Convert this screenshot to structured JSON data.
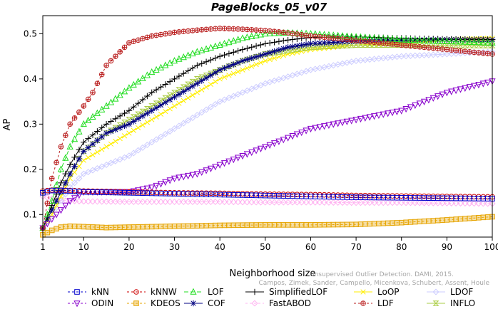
{
  "chart_data": {
    "type": "line",
    "title": "PageBlocks_05_v07",
    "xlabel": "Neighborhood size",
    "ylabel": "AP",
    "xlim": [
      1,
      100
    ],
    "ylim": [
      0.05,
      0.54
    ],
    "xticks": [
      1,
      10,
      20,
      30,
      40,
      50,
      60,
      70,
      80,
      90,
      100
    ],
    "yticks": [
      0.1,
      0.2,
      0.3,
      0.4,
      0.5
    ],
    "grid": false,
    "legend_position": "bottom",
    "watermark": "Campos, Zimek, Sander, Campello, Micenkova, Schubert, Assent, Houle",
    "watermark_partial": "Unsupervised Outlier Detection. DAMI, 2015.",
    "series": [
      {
        "name": "kNN",
        "color": "#0000cc",
        "marker": "square",
        "dash": "3,3",
        "x": [
          1,
          3,
          5,
          10,
          20,
          30,
          40,
          50,
          60,
          70,
          80,
          90,
          100
        ],
        "y": [
          0.148,
          0.153,
          0.153,
          0.15,
          0.148,
          0.146,
          0.144,
          0.142,
          0.14,
          0.138,
          0.137,
          0.136,
          0.135
        ]
      },
      {
        "name": "kNNW",
        "color": "#cc0000",
        "marker": "circle",
        "dash": "3,3",
        "x": [
          1,
          3,
          5,
          10,
          20,
          30,
          40,
          50,
          60,
          70,
          80,
          90,
          100
        ],
        "y": [
          0.152,
          0.154,
          0.154,
          0.152,
          0.15,
          0.148,
          0.147,
          0.145,
          0.144,
          0.142,
          0.141,
          0.14,
          0.139
        ]
      },
      {
        "name": "LOF",
        "color": "#22dd22",
        "marker": "triangle",
        "dash": "6,3",
        "x": [
          1,
          3,
          5,
          7,
          10,
          15,
          20,
          25,
          30,
          35,
          40,
          45,
          50,
          55,
          60,
          70,
          80,
          90,
          100
        ],
        "y": [
          0.07,
          0.13,
          0.2,
          0.25,
          0.3,
          0.34,
          0.38,
          0.415,
          0.44,
          0.46,
          0.475,
          0.49,
          0.5,
          0.502,
          0.5,
          0.493,
          0.487,
          0.483,
          0.48
        ]
      },
      {
        "name": "SimplifiedLOF",
        "color": "#000000",
        "marker": "plus",
        "dash": "",
        "x": [
          1,
          3,
          5,
          7,
          10,
          15,
          20,
          25,
          30,
          35,
          40,
          45,
          50,
          55,
          60,
          70,
          80,
          90,
          100
        ],
        "y": [
          0.07,
          0.12,
          0.17,
          0.21,
          0.26,
          0.3,
          0.33,
          0.37,
          0.4,
          0.43,
          0.45,
          0.465,
          0.478,
          0.486,
          0.492,
          0.493,
          0.49,
          0.488,
          0.487
        ]
      },
      {
        "name": "LoOP",
        "color": "#ffee00",
        "marker": "cross",
        "dash": "",
        "x": [
          1,
          3,
          5,
          7,
          10,
          15,
          20,
          25,
          30,
          35,
          40,
          45,
          50,
          55,
          60,
          70,
          80,
          90,
          100
        ],
        "y": [
          0.07,
          0.1,
          0.14,
          0.18,
          0.22,
          0.25,
          0.28,
          0.31,
          0.34,
          0.37,
          0.4,
          0.42,
          0.44,
          0.455,
          0.465,
          0.475,
          0.48,
          0.487,
          0.49
        ]
      },
      {
        "name": "LDOF",
        "color": "#ccccff",
        "marker": "diamond",
        "dash": "",
        "x": [
          1,
          3,
          5,
          7,
          10,
          15,
          20,
          25,
          30,
          35,
          40,
          45,
          50,
          55,
          60,
          70,
          80,
          90,
          100
        ],
        "y": [
          0.07,
          0.1,
          0.13,
          0.16,
          0.19,
          0.21,
          0.23,
          0.26,
          0.29,
          0.32,
          0.35,
          0.37,
          0.39,
          0.405,
          0.42,
          0.44,
          0.45,
          0.455,
          0.46
        ]
      },
      {
        "name": "ODIN",
        "color": "#8800cc",
        "marker": "triangle-down",
        "dash": "3,3",
        "x": [
          1,
          3,
          5,
          7,
          10,
          15,
          20,
          25,
          30,
          35,
          40,
          45,
          50,
          55,
          60,
          70,
          80,
          90,
          100
        ],
        "y": [
          0.07,
          0.09,
          0.11,
          0.13,
          0.15,
          0.15,
          0.15,
          0.16,
          0.18,
          0.19,
          0.21,
          0.23,
          0.25,
          0.27,
          0.29,
          0.31,
          0.33,
          0.37,
          0.395
        ]
      },
      {
        "name": "KDEOS",
        "color": "#e6a400",
        "marker": "square-filled",
        "dash": "3,3",
        "x": [
          1,
          3,
          5,
          7,
          10,
          15,
          20,
          30,
          40,
          50,
          60,
          70,
          80,
          90,
          100
        ],
        "y": [
          0.055,
          0.065,
          0.072,
          0.074,
          0.073,
          0.071,
          0.072,
          0.074,
          0.076,
          0.077,
          0.077,
          0.078,
          0.082,
          0.088,
          0.095
        ]
      },
      {
        "name": "COF",
        "color": "#000080",
        "marker": "asterisk",
        "dash": "",
        "x": [
          1,
          3,
          5,
          7,
          10,
          15,
          20,
          25,
          30,
          35,
          40,
          45,
          50,
          55,
          60,
          70,
          80,
          90,
          100
        ],
        "y": [
          0.07,
          0.11,
          0.15,
          0.19,
          0.24,
          0.28,
          0.3,
          0.33,
          0.36,
          0.39,
          0.42,
          0.44,
          0.455,
          0.47,
          0.478,
          0.484,
          0.486,
          0.487,
          0.487
        ]
      },
      {
        "name": "FastABOD",
        "color": "#ffb0f0",
        "marker": "diamond",
        "dash": "3,3",
        "x": [
          1,
          3,
          5,
          10,
          20,
          30,
          40,
          50,
          60,
          70,
          80,
          90,
          100
        ],
        "y": [
          0.14,
          0.135,
          0.131,
          0.129,
          0.128,
          0.128,
          0.128,
          0.127,
          0.127,
          0.126,
          0.126,
          0.125,
          0.124
        ]
      },
      {
        "name": "LDF",
        "color": "#bb2222",
        "marker": "circle-plus",
        "dash": "3,3",
        "x": [
          1,
          3,
          5,
          7,
          10,
          12,
          15,
          18,
          20,
          25,
          30,
          35,
          40,
          45,
          50,
          55,
          60,
          70,
          80,
          90,
          100
        ],
        "y": [
          0.07,
          0.18,
          0.25,
          0.3,
          0.34,
          0.37,
          0.43,
          0.46,
          0.48,
          0.495,
          0.503,
          0.508,
          0.512,
          0.51,
          0.507,
          0.502,
          0.495,
          0.485,
          0.475,
          0.465,
          0.455
        ]
      },
      {
        "name": "INFLO",
        "color": "#aacc44",
        "marker": "hourglass",
        "dash": "",
        "x": [
          1,
          3,
          5,
          7,
          10,
          15,
          20,
          25,
          30,
          35,
          40,
          45,
          50,
          55,
          60,
          70,
          80,
          90,
          100
        ],
        "y": [
          0.07,
          0.11,
          0.15,
          0.19,
          0.24,
          0.28,
          0.31,
          0.34,
          0.37,
          0.4,
          0.42,
          0.44,
          0.455,
          0.463,
          0.47,
          0.475,
          0.475,
          0.474,
          0.474
        ]
      }
    ],
    "legend_order": [
      "kNN",
      "kNNW",
      "LOF",
      "SimplifiedLOF",
      "LoOP",
      "LDOF",
      "ODIN",
      "KDEOS",
      "COF",
      "FastABOD",
      "LDF",
      "INFLO"
    ]
  }
}
